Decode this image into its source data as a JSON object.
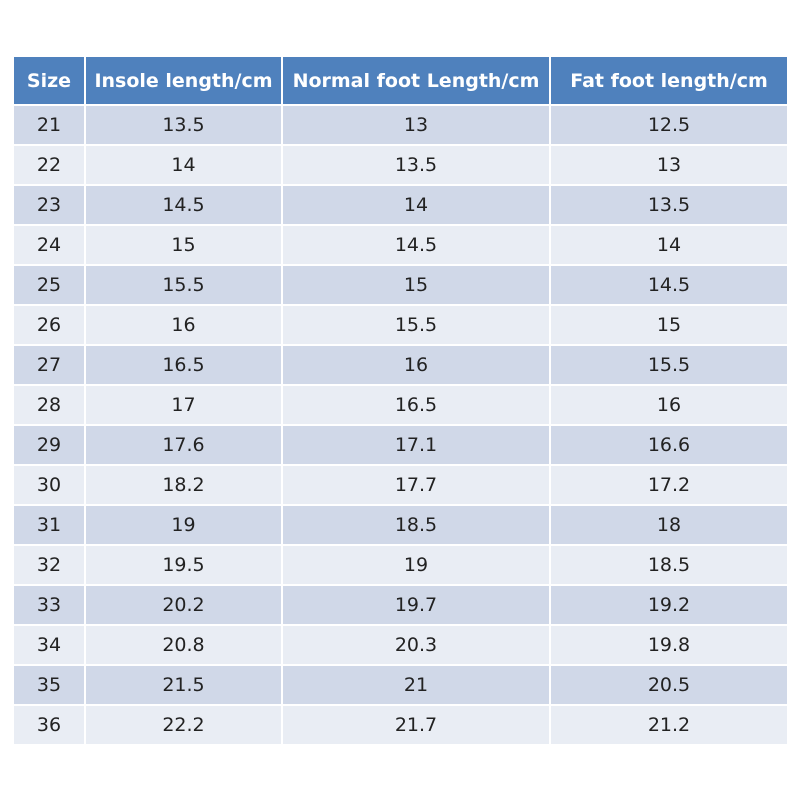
{
  "table": {
    "header": [
      "Size",
      "Insole length/cm",
      "Normal foot Length/cm",
      "Fat foot length/cm"
    ],
    "rows": [
      [
        "21",
        "13.5",
        "13",
        "12.5"
      ],
      [
        "22",
        "14",
        "13.5",
        "13"
      ],
      [
        "23",
        "14.5",
        "14",
        "13.5"
      ],
      [
        "24",
        "15",
        "14.5",
        "14"
      ],
      [
        "25",
        "15.5",
        "15",
        "14.5"
      ],
      [
        "26",
        "16",
        "15.5",
        "15"
      ],
      [
        "27",
        "16.5",
        "16",
        "15.5"
      ],
      [
        "28",
        "17",
        "16.5",
        "16"
      ],
      [
        "29",
        "17.6",
        "17.1",
        "16.6"
      ],
      [
        "30",
        "18.2",
        "17.7",
        "17.2"
      ],
      [
        "31",
        "19",
        "18.5",
        "18"
      ],
      [
        "32",
        "19.5",
        "19",
        "18.5"
      ],
      [
        "33",
        "20.2",
        "19.7",
        "19.2"
      ],
      [
        "34",
        "20.8",
        "20.3",
        "19.8"
      ],
      [
        "35",
        "21.5",
        "21",
        "20.5"
      ],
      [
        "36",
        "22.2",
        "21.7",
        "21.2"
      ]
    ]
  }
}
